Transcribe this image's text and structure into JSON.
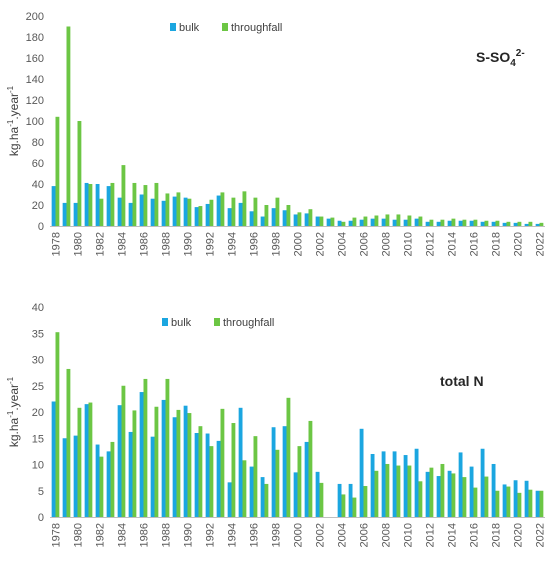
{
  "chart_data": [
    {
      "type": "bar",
      "annotation": "S-SO",
      "annotation_sub": "4",
      "annotation_sup": "2-",
      "ylabel": "kg.ha",
      "ylabel_sup1": "-1",
      "ylabel_mid": ".year",
      "ylabel_sup2": "-1",
      "ylim": [
        0,
        200
      ],
      "yticks": [
        0,
        20,
        40,
        60,
        80,
        100,
        120,
        140,
        160,
        180,
        200
      ],
      "grid": false,
      "legend_position": "top-center",
      "colors": {
        "bulk": "#1ba6e0",
        "throughfall": "#6cc644"
      },
      "x": [
        1978,
        1979,
        1980,
        1981,
        1982,
        1983,
        1984,
        1985,
        1986,
        1987,
        1988,
        1989,
        1990,
        1991,
        1992,
        1993,
        1994,
        1995,
        1996,
        1997,
        1998,
        1999,
        2000,
        2001,
        2002,
        2003,
        2004,
        2005,
        2006,
        2007,
        2008,
        2009,
        2010,
        2011,
        2012,
        2013,
        2014,
        2015,
        2016,
        2017,
        2018,
        2019,
        2020,
        2021,
        2022
      ],
      "xtick_labels": [
        "1978",
        "1980",
        "1982",
        "1984",
        "1986",
        "1988",
        "1990",
        "1992",
        "1994",
        "1996",
        "1998",
        "2000",
        "2002",
        "2004",
        "2006",
        "2008",
        "2010",
        "2012",
        "2014",
        "2016",
        "2018",
        "2020",
        "2022"
      ],
      "series": [
        {
          "name": "bulk",
          "values": [
            38,
            22,
            22,
            41,
            40,
            38,
            27,
            22,
            30,
            26,
            24,
            28,
            27,
            18,
            21,
            29,
            17,
            22,
            14,
            9,
            17,
            15,
            11,
            12,
            9,
            7,
            5,
            5,
            6,
            7,
            7,
            6,
            6,
            7,
            4,
            4,
            5,
            5,
            5,
            4,
            4,
            3,
            3,
            2,
            2
          ]
        },
        {
          "name": "throughfall",
          "values": [
            104,
            190,
            100,
            40,
            26,
            41,
            58,
            41,
            39,
            41,
            31,
            32,
            26,
            19,
            25,
            32,
            27,
            33,
            27,
            20,
            27,
            20,
            13,
            16,
            9,
            8,
            4,
            8,
            9,
            10,
            11,
            11,
            10,
            9,
            6,
            6,
            7,
            6,
            6,
            5,
            5,
            4,
            4,
            4,
            3
          ]
        }
      ]
    },
    {
      "type": "bar",
      "annotation": "total N",
      "ylabel": "kg.ha",
      "ylabel_sup1": "-1",
      "ylabel_mid": ".year",
      "ylabel_sup2": "-1",
      "ylim": [
        0,
        40
      ],
      "yticks": [
        0,
        5,
        10,
        15,
        20,
        25,
        30,
        35,
        40
      ],
      "grid": false,
      "legend_position": "top-center",
      "colors": {
        "bulk": "#1ba6e0",
        "throughfall": "#6cc644"
      },
      "x": [
        1978,
        1979,
        1980,
        1981,
        1982,
        1983,
        1984,
        1985,
        1986,
        1987,
        1988,
        1989,
        1990,
        1991,
        1992,
        1993,
        1994,
        1995,
        1996,
        1997,
        1998,
        1999,
        2000,
        2001,
        2002,
        2003,
        2004,
        2005,
        2006,
        2007,
        2008,
        2009,
        2010,
        2011,
        2012,
        2013,
        2014,
        2015,
        2016,
        2017,
        2018,
        2019,
        2020,
        2021,
        2022
      ],
      "xtick_labels": [
        "1978",
        "1980",
        "1982",
        "1984",
        "1986",
        "1988",
        "1990",
        "1992",
        "1994",
        "1996",
        "1998",
        "2000",
        "2002",
        "2004",
        "2006",
        "2008",
        "2010",
        "2012",
        "2014",
        "2016",
        "2018",
        "2020",
        "2022"
      ],
      "series": [
        {
          "name": "bulk",
          "values": [
            22,
            15,
            15.5,
            21.5,
            13.8,
            12.5,
            21.3,
            16.2,
            23.8,
            15.3,
            22.3,
            19,
            21.2,
            16,
            15.9,
            14.5,
            6.6,
            20.8,
            9.6,
            7.6,
            17.1,
            17.3,
            8.5,
            14.3,
            8.6,
            null,
            6.3,
            6.3,
            16.8,
            12,
            12.5,
            12.5,
            11.8,
            13,
            8.6,
            7.8,
            8.8,
            12.3,
            9.6,
            13,
            10.1,
            6.2,
            7,
            6.9,
            5
          ]
        },
        {
          "name": "throughfall",
          "values": [
            35.2,
            28.2,
            20.8,
            21.8,
            11.5,
            14.3,
            25,
            20.3,
            26.3,
            21,
            26.3,
            20.4,
            19.8,
            17.3,
            13.5,
            20.6,
            17.9,
            10.8,
            15.4,
            6.3,
            12.8,
            22.7,
            13.5,
            18.3,
            6.5,
            null,
            4.3,
            3.7,
            5.9,
            8.8,
            10.1,
            9.8,
            9.8,
            6.8,
            9.4,
            10.1,
            8.3,
            7.6,
            5.6,
            7.7,
            5,
            5.8,
            4.6,
            5.2,
            5
          ]
        }
      ]
    }
  ]
}
